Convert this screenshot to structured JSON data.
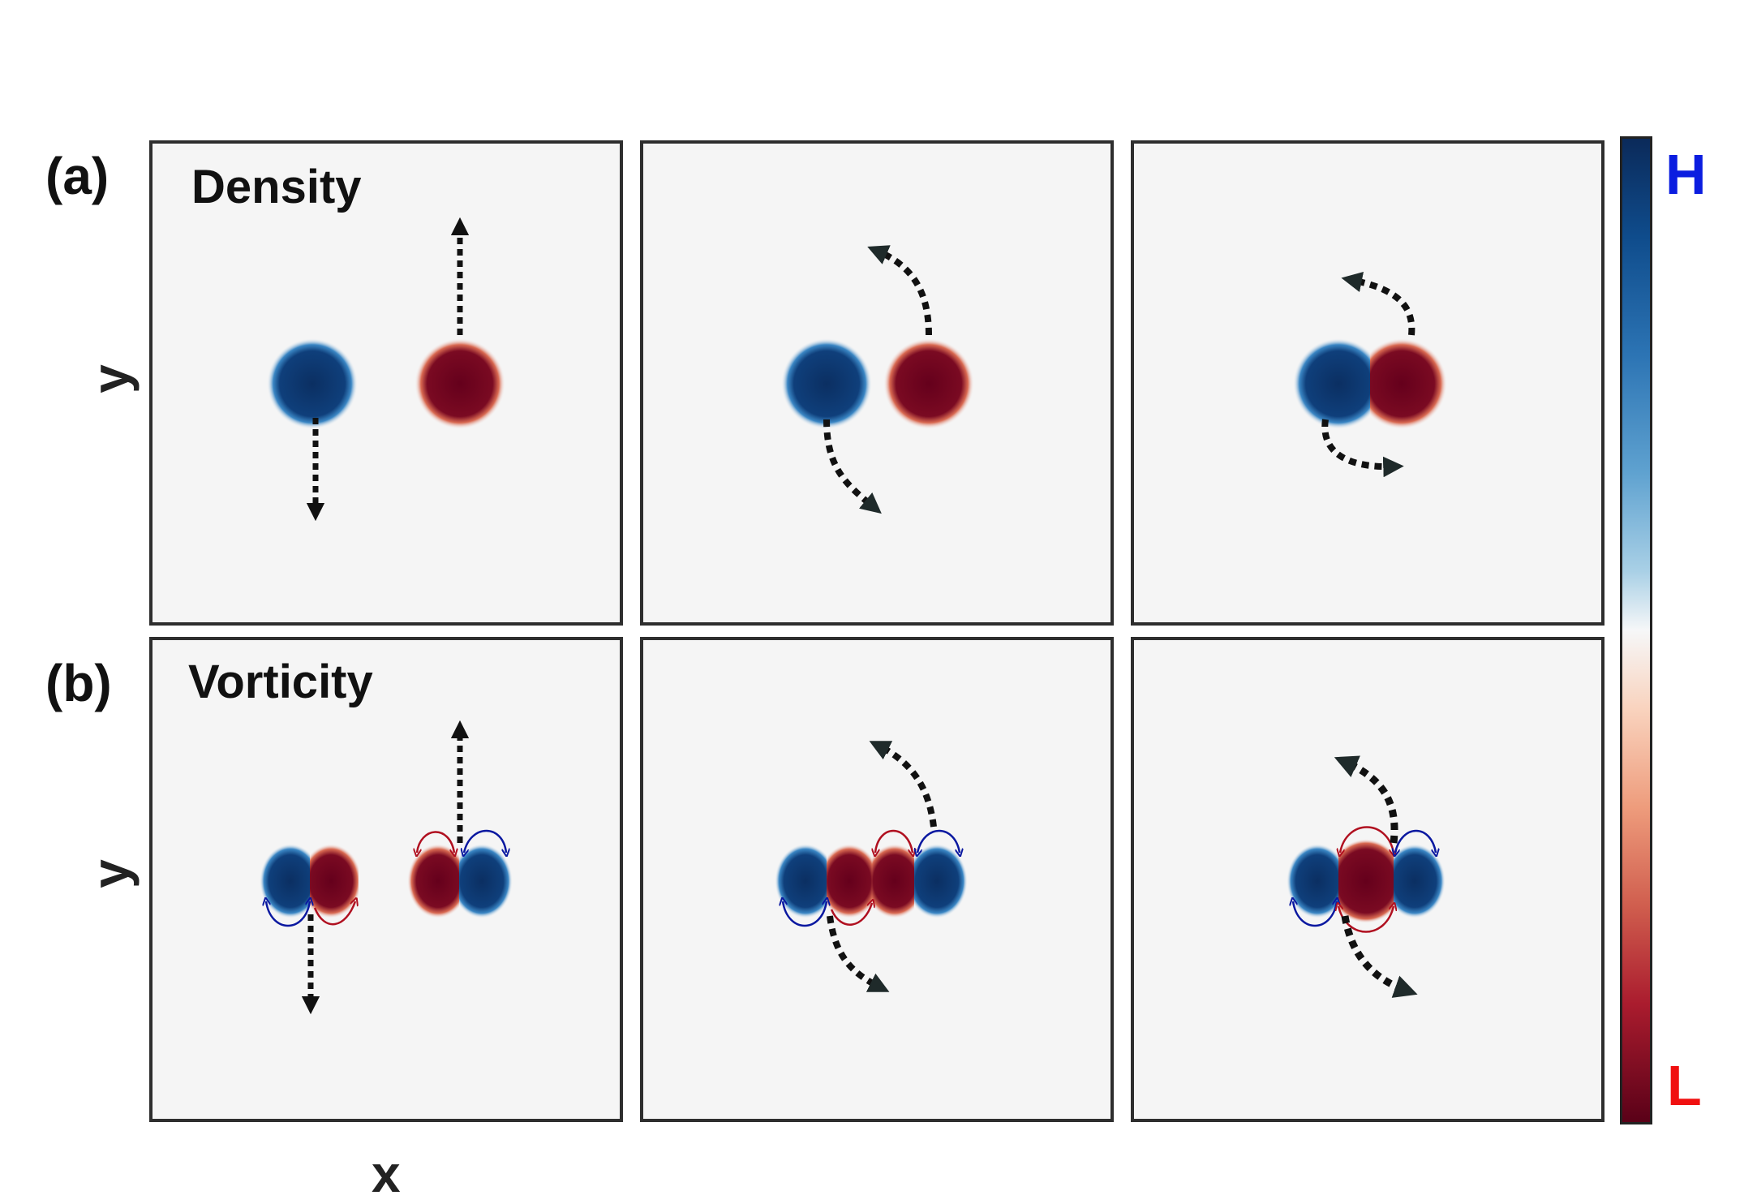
{
  "row_labels": {
    "a": "(a)",
    "b": "(b)"
  },
  "panel_titles": {
    "density": "Density",
    "vorticity": "Vorticity"
  },
  "axes": {
    "x": "x",
    "y": "y"
  },
  "colorbar": {
    "high_label": "H",
    "low_label": "L",
    "high_label_color": "#0b1de0",
    "low_label_color": "#f01010",
    "high_color": "#0b2a5a",
    "low_color": "#5a0118"
  }
}
